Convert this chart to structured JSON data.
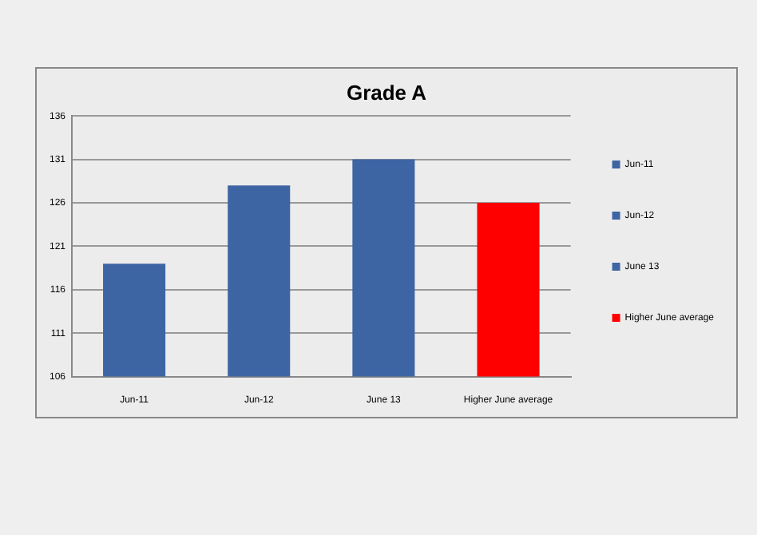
{
  "chart_data": {
    "type": "bar",
    "title": "Grade A",
    "categories": [
      "Jun-11",
      "Jun-12",
      "June 13",
      "Higher June average"
    ],
    "series": [
      {
        "name": "Jun-11",
        "color": "#3e65a3",
        "values": [
          119,
          null,
          null,
          null
        ]
      },
      {
        "name": "Jun-12",
        "color": "#3e65a3",
        "values": [
          null,
          128,
          null,
          null
        ]
      },
      {
        "name": "June 13",
        "color": "#3e65a3",
        "values": [
          null,
          null,
          131,
          null
        ]
      },
      {
        "name": "Higher June average",
        "color": "#ff0000",
        "values": [
          null,
          null,
          null,
          126
        ]
      }
    ],
    "ylim": [
      106,
      136
    ],
    "yticks": [
      106,
      111,
      116,
      121,
      126,
      131,
      136
    ],
    "grid": "y",
    "legend": "right"
  }
}
